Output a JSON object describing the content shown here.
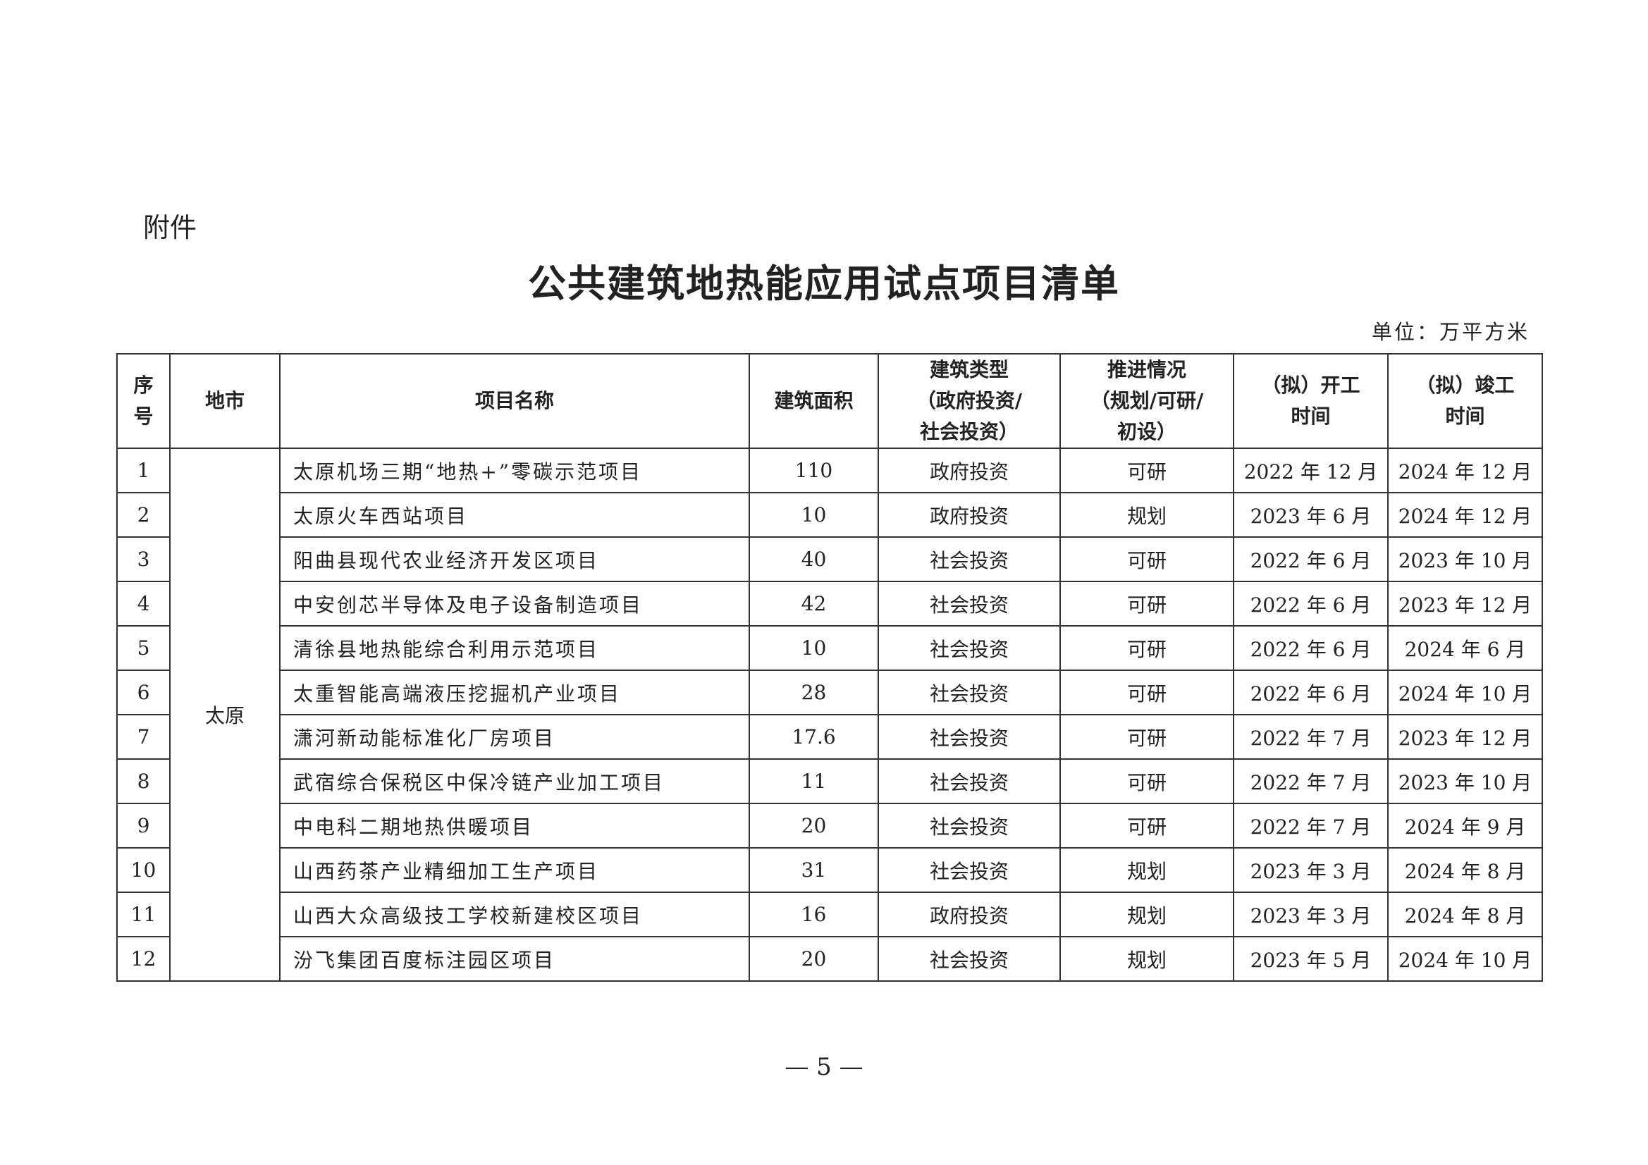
{
  "attachment_label": "附件",
  "title": "公共建筑地热能应用试点项目清单",
  "unit": "单位：万平方米",
  "table": {
    "headers": [
      "序号",
      "地市",
      "项目名称",
      "建筑面积",
      "建筑类型（政府投资/社会投资）",
      "推进情况（规划/可研/初设）",
      "（拟）开工时间",
      "（拟）竣工时间"
    ],
    "header_lines": {
      "seq": [
        "序",
        "号"
      ],
      "type": [
        "建筑类型",
        "（政府投资/",
        "社会投资）"
      ],
      "progress": [
        "推进情况",
        "（规划/可研/",
        "初设）"
      ],
      "start": [
        "（拟）开工",
        "时间"
      ],
      "end": [
        "（拟）竣工",
        "时间"
      ]
    },
    "city": "太原",
    "rows": [
      {
        "no": "1",
        "name": "太原机场三期“地热+”零碳示范项目",
        "area": "110",
        "type": "政府投资",
        "status": "可研",
        "start": "2022 年 12 月",
        "end": "2024 年 12 月"
      },
      {
        "no": "2",
        "name": "太原火车西站项目",
        "area": "10",
        "type": "政府投资",
        "status": "规划",
        "start": "2023 年 6 月",
        "end": "2024 年 12 月"
      },
      {
        "no": "3",
        "name": "阳曲县现代农业经济开发区项目",
        "area": "40",
        "type": "社会投资",
        "status": "可研",
        "start": "2022 年 6 月",
        "end": "2023 年 10 月"
      },
      {
        "no": "4",
        "name": "中安创芯半导体及电子设备制造项目",
        "area": "42",
        "type": "社会投资",
        "status": "可研",
        "start": "2022 年 6 月",
        "end": "2023 年 12 月"
      },
      {
        "no": "5",
        "name": "清徐县地热能综合利用示范项目",
        "area": "10",
        "type": "社会投资",
        "status": "可研",
        "start": "2022 年 6 月",
        "end": "2024 年 6 月"
      },
      {
        "no": "6",
        "name": "太重智能高端液压挖掘机产业项目",
        "area": "28",
        "type": "社会投资",
        "status": "可研",
        "start": "2022 年 6 月",
        "end": "2024 年 10 月"
      },
      {
        "no": "7",
        "name": "潇河新动能标准化厂房项目",
        "area": "17.6",
        "type": "社会投资",
        "status": "可研",
        "start": "2022 年 7 月",
        "end": "2023 年 12 月"
      },
      {
        "no": "8",
        "name": "武宿综合保税区中保冷链产业加工项目",
        "area": "11",
        "type": "社会投资",
        "status": "可研",
        "start": "2022 年 7 月",
        "end": "2023 年 10 月"
      },
      {
        "no": "9",
        "name": "中电科二期地热供暖项目",
        "area": "20",
        "type": "社会投资",
        "status": "可研",
        "start": "2022 年 7 月",
        "end": "2024 年 9 月"
      },
      {
        "no": "10",
        "name": "山西药茶产业精细加工生产项目",
        "area": "31",
        "type": "社会投资",
        "status": "规划",
        "start": "2023 年 3 月",
        "end": "2024 年 8 月"
      },
      {
        "no": "11",
        "name": "山西大众高级技工学校新建校区项目",
        "area": "16",
        "type": "政府投资",
        "status": "规划",
        "start": "2023 年 3 月",
        "end": "2024 年 8 月"
      },
      {
        "no": "12",
        "name": "汾飞集团百度标注园区项目",
        "area": "20",
        "type": "社会投资",
        "status": "规划",
        "start": "2023 年 5 月",
        "end": "2024 年 10 月"
      }
    ]
  },
  "page_number": "— 5 —"
}
